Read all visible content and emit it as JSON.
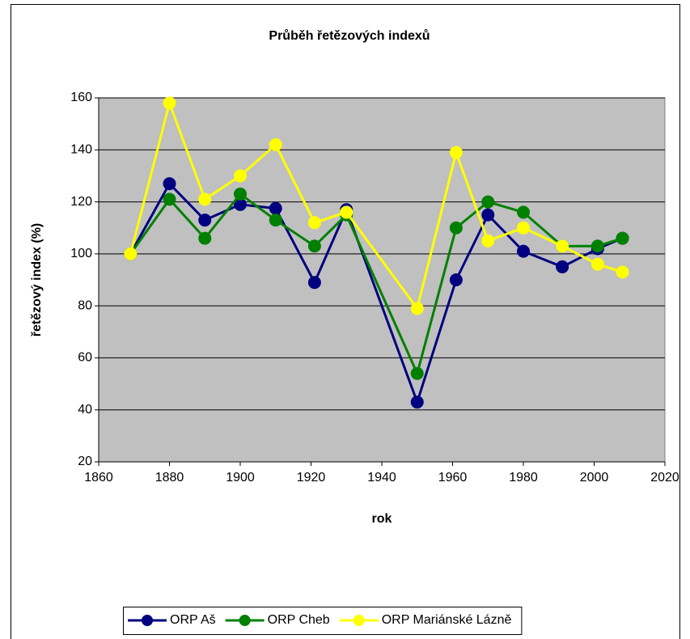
{
  "chart_data": {
    "type": "line",
    "title": "Průběh řetězových indexů",
    "xlabel": "rok",
    "ylabel": "řetězový index (%)",
    "x": [
      1869,
      1880,
      1890,
      1900,
      1910,
      1921,
      1930,
      1950,
      1961,
      1970,
      1980,
      1991,
      2001,
      2008
    ],
    "series": [
      {
        "name": "ORP Aš",
        "color": "#000080",
        "values": [
          100,
          127,
          113,
          119,
          117.5,
          89,
          117,
          43,
          90,
          115,
          101,
          95,
          102,
          106
        ]
      },
      {
        "name": "ORP Cheb",
        "color": "#008000",
        "values": [
          100,
          121,
          106,
          123,
          113,
          103,
          115,
          54,
          110,
          120,
          116,
          103,
          103,
          106
        ]
      },
      {
        "name": "ORP Mariánské Lázně",
        "color": "#ffff00",
        "values": [
          100,
          158,
          121,
          130,
          142,
          112,
          116,
          79,
          139,
          105,
          110,
          103,
          96,
          93
        ]
      }
    ],
    "xlim": [
      1860,
      2020
    ],
    "xticks": [
      1860,
      1880,
      1900,
      1920,
      1940,
      1960,
      1980,
      2000,
      2020
    ],
    "ylim": [
      20,
      160
    ],
    "yticks": [
      20,
      40,
      60,
      80,
      100,
      120,
      140,
      160
    ],
    "grid": true,
    "plot_background": "#c0c0c0",
    "legend": "bottom"
  }
}
